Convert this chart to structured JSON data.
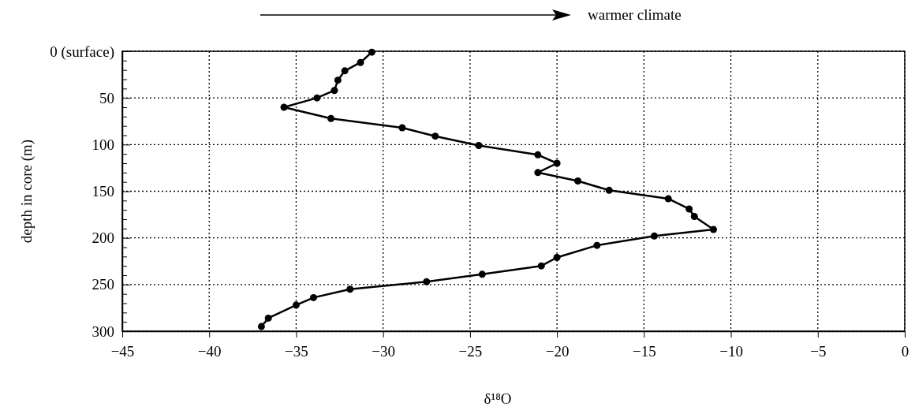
{
  "chart_data": {
    "type": "line",
    "xlabel": "δ¹⁸O",
    "ylabel": "depth in core (m)",
    "annotations": [
      "warmer climate"
    ],
    "series": [
      {
        "color": "#000000",
        "x": [
          -30.65,
          -31.3,
          -32.2,
          -32.6,
          -32.8,
          -33.8,
          -35.7,
          -33.0,
          -28.9,
          -27.0,
          -24.5,
          -21.1,
          -20.0,
          -21.1,
          -18.8,
          -17.0,
          -13.6,
          -12.4,
          -12.1,
          -11.0,
          -14.4,
          -17.7,
          -20.0,
          -20.9,
          -24.3,
          -27.5,
          -31.9,
          -34.0,
          -35.0,
          -36.6,
          -37.0
        ],
        "values": [
          1,
          12,
          21,
          31,
          42,
          50,
          60,
          72,
          82,
          91,
          101,
          111,
          120,
          130,
          139,
          149,
          158,
          169,
          177,
          191,
          198,
          208,
          221,
          230,
          239,
          247,
          255,
          264,
          272,
          286,
          295
        ]
      }
    ],
    "xlim": [
      -45,
      0
    ],
    "xticks": [
      -45,
      -40,
      -35,
      -30,
      -25,
      -20,
      -15,
      -10,
      -5,
      0
    ],
    "ylim": [
      300,
      0
    ],
    "yticks": [
      {
        "value": 0,
        "label": "0 (surface)"
      },
      {
        "value": 10,
        "label": null
      },
      {
        "value": 20,
        "label": null
      },
      {
        "value": 30,
        "label": null
      },
      {
        "value": 40,
        "label": null
      },
      50,
      {
        "value": 60,
        "label": null
      },
      {
        "value": 70,
        "label": null
      },
      {
        "value": 80,
        "label": null
      },
      {
        "value": 90,
        "label": null
      },
      100,
      {
        "value": 110,
        "label": null
      },
      {
        "value": 120,
        "label": null
      },
      {
        "value": 130,
        "label": null
      },
      {
        "value": 140,
        "label": null
      },
      150,
      {
        "value": 160,
        "label": null
      },
      {
        "value": 170,
        "label": null
      },
      {
        "value": 180,
        "label": null
      },
      {
        "value": 190,
        "label": null
      },
      200,
      {
        "value": 210,
        "label": null
      },
      {
        "value": 220,
        "label": null
      },
      {
        "value": 230,
        "label": null
      },
      {
        "value": 240,
        "label": null
      },
      250,
      {
        "value": 260,
        "label": null
      },
      {
        "value": 270,
        "label": null
      },
      {
        "value": 280,
        "label": null
      },
      {
        "value": 290,
        "label": null
      },
      300
    ],
    "grid": true,
    "marker": "circle",
    "line_style": "solid"
  }
}
